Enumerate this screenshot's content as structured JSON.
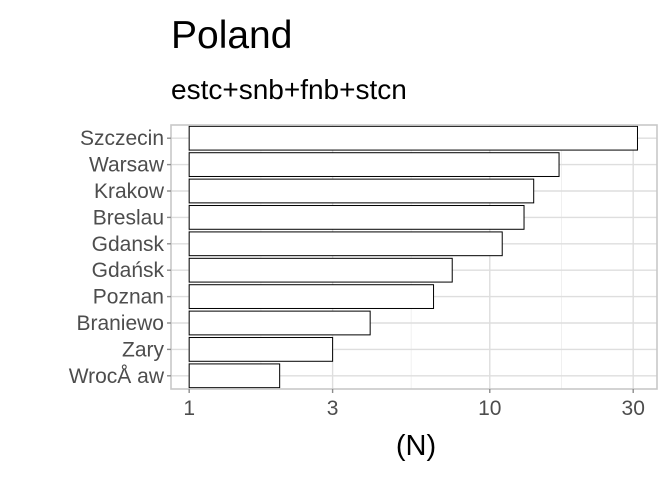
{
  "chart_data": {
    "type": "bar",
    "orientation": "horizontal",
    "title": "Poland",
    "subtitle": "estc+snb+fnb+stcn",
    "xlabel": "(N)",
    "ylabel": "",
    "x_scale": "log10",
    "xlim": [
      0.87,
      36
    ],
    "x_ticks": [
      1,
      3,
      10,
      30
    ],
    "x_tick_labels": [
      "1",
      "3",
      "10",
      "30"
    ],
    "grid": true,
    "legend": "none",
    "categories": [
      "Szczecin",
      "Warsaw",
      "Krakow",
      "Breslau",
      "Gdansk",
      "Gdańsk",
      "Poznan",
      "Braniewo",
      "Zary",
      "WrocÅ aw"
    ],
    "values": [
      31,
      17,
      14,
      13,
      11,
      7.5,
      6.5,
      4,
      3,
      2
    ],
    "colors": {
      "bar_fill": "#ffffff",
      "bar_outline": "#000000",
      "panel_border": "#c8c8c8",
      "grid": "#dedede"
    }
  }
}
